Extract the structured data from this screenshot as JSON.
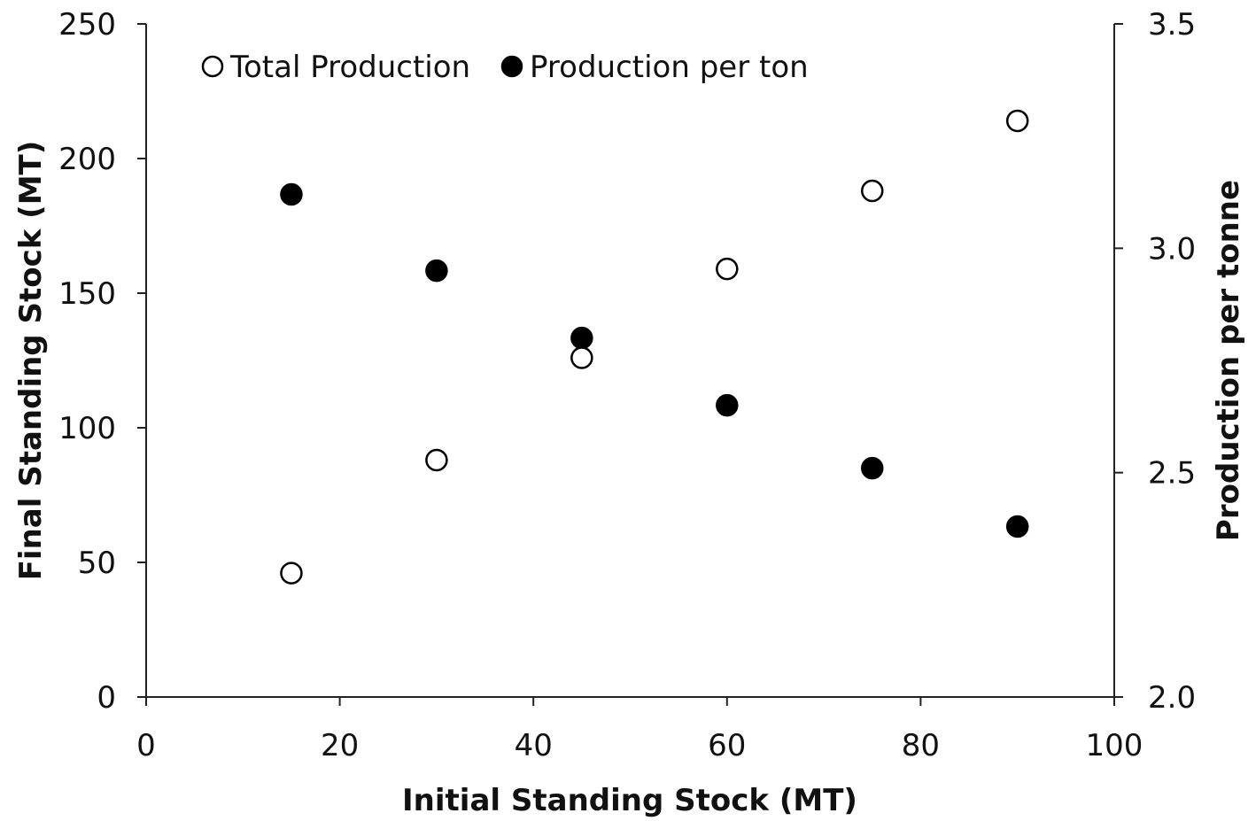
{
  "chart_data": {
    "type": "scatter",
    "title": "",
    "xlabel": "Initial Standing Stock (MT)",
    "ylabel": "Final Standing Stock (MT)",
    "y2label": "Production per tonne",
    "xlim": [
      0,
      100
    ],
    "ylim": [
      0,
      250
    ],
    "y2lim": [
      2.0,
      3.5
    ],
    "x_ticks": [
      "0",
      "20",
      "40",
      "60",
      "80",
      "100"
    ],
    "x_tick_values": [
      0,
      20,
      40,
      60,
      80,
      100
    ],
    "y_ticks": [
      "0",
      "50",
      "100",
      "150",
      "200",
      "250"
    ],
    "y_tick_values": [
      0,
      50,
      100,
      150,
      200,
      250
    ],
    "y2_ticks": [
      "2.0",
      "2.5",
      "3.0",
      "3.5"
    ],
    "y2_tick_values": [
      2.0,
      2.5,
      3.0,
      3.5
    ],
    "grid": false,
    "legend_placement": "top-left",
    "series": [
      {
        "name": "Total Production",
        "marker": "open-circle",
        "axis": "left",
        "x": [
          15,
          30,
          45,
          60,
          75,
          90
        ],
        "y": [
          46,
          88,
          126,
          159,
          188,
          214
        ]
      },
      {
        "name": "Production per ton",
        "marker": "filled-circle",
        "axis": "right",
        "x": [
          15,
          30,
          45,
          60,
          75,
          90
        ],
        "y": [
          3.12,
          2.95,
          2.8,
          2.65,
          2.51,
          2.38
        ]
      }
    ],
    "colors": {
      "axis": "#222222",
      "marker_stroke": "#000000",
      "open_fill": "#ffffff",
      "filled_fill": "#000000"
    }
  }
}
